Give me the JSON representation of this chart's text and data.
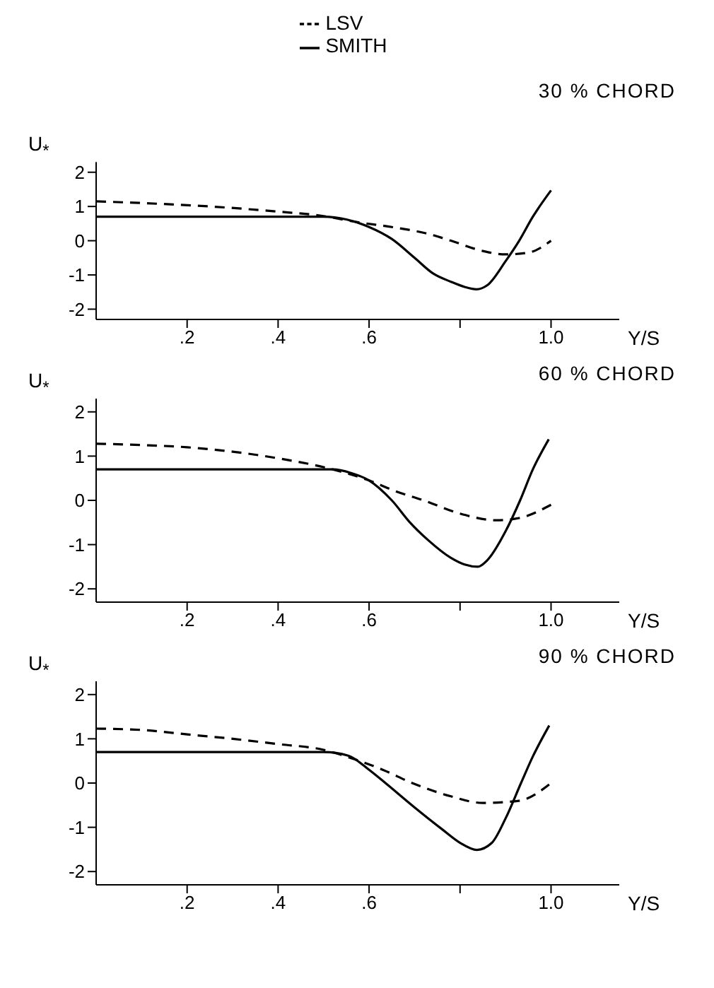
{
  "chart_data": [
    {
      "type": "line",
      "title": "30 % CHORD",
      "xlabel": "Y/S",
      "ylabel": "U$_{*}$",
      "legend": "top",
      "xlim": [
        0,
        1.15
      ],
      "ylim": [
        -2.3,
        2.3
      ],
      "xticks": [
        {
          "value": 0.2,
          "label": ".2"
        },
        {
          "value": 0.4,
          "label": ".4"
        },
        {
          "value": 0.6,
          "label": ".6"
        },
        {
          "value": 0.8,
          "label": null
        },
        {
          "value": 1.0,
          "label": "1.0"
        }
      ],
      "yticks": [
        -2,
        -1,
        0,
        1,
        2
      ],
      "series": [
        {
          "name": "SMITH",
          "color": "#000000",
          "line_style": "solid",
          "x": [
            0,
            0.2,
            0.4,
            0.5,
            0.55,
            0.6,
            0.65,
            0.7,
            0.74,
            0.78,
            0.81,
            0.836,
            0.86,
            0.9,
            0.93,
            0.96,
            1.0
          ],
          "values": [
            0.7,
            0.7,
            0.7,
            0.7,
            0.62,
            0.4,
            0.05,
            -0.5,
            -0.95,
            -1.2,
            -1.35,
            -1.42,
            -1.3,
            -0.6,
            0,
            0.7,
            1.47
          ]
        },
        {
          "name": "LSV",
          "color": "#000000",
          "line_style": "dashed",
          "x": [
            0,
            0.1,
            0.25,
            0.4,
            0.5,
            0.57,
            0.65,
            0.73,
            0.78,
            0.85,
            0.9,
            0.95,
            1.0
          ],
          "values": [
            1.15,
            1.1,
            1.0,
            0.85,
            0.72,
            0.55,
            0.4,
            0.2,
            0.0,
            -0.3,
            -0.4,
            -0.35,
            0.0
          ]
        }
      ]
    },
    {
      "type": "line",
      "title": "60 % CHORD",
      "xlabel": "Y/S",
      "ylabel": "U$_{*}$",
      "xlim": [
        0,
        1.15
      ],
      "ylim": [
        -2.3,
        2.3
      ],
      "xticks": [
        {
          "value": 0.2,
          "label": ".2"
        },
        {
          "value": 0.4,
          "label": ".4"
        },
        {
          "value": 0.6,
          "label": ".6"
        },
        {
          "value": 0.8,
          "label": null
        },
        {
          "value": 1.0,
          "label": "1.0"
        }
      ],
      "yticks": [
        -2,
        -1,
        0,
        1,
        2
      ],
      "series": [
        {
          "color": "#000000",
          "line_style": "solid",
          "x": [
            0,
            0.2,
            0.4,
            0.52,
            0.56,
            0.6,
            0.65,
            0.69,
            0.73,
            0.78,
            0.81,
            0.839,
            0.86,
            0.9,
            0.932,
            0.96,
            0.995
          ],
          "values": [
            0.7,
            0.7,
            0.7,
            0.7,
            0.62,
            0.45,
            0,
            -0.5,
            -0.9,
            -1.3,
            -1.45,
            -1.5,
            -1.35,
            -0.7,
            0,
            0.7,
            1.38
          ]
        },
        {
          "color": "#000000",
          "line_style": "dashed",
          "x": [
            0,
            0.1,
            0.2,
            0.3,
            0.4,
            0.5,
            0.6,
            0.66,
            0.72,
            0.8,
            0.88,
            0.93,
            1.0
          ],
          "values": [
            1.28,
            1.25,
            1.2,
            1.1,
            0.95,
            0.75,
            0.45,
            0.2,
            0,
            -0.3,
            -0.45,
            -0.4,
            -0.1
          ]
        }
      ]
    },
    {
      "type": "line",
      "title": "90 % CHORD",
      "xlabel": "Y/S",
      "ylabel": "U$_{*}$",
      "xlim": [
        0,
        1.15
      ],
      "ylim": [
        -2.3,
        2.3
      ],
      "xticks": [
        {
          "value": 0.2,
          "label": ".2"
        },
        {
          "value": 0.4,
          "label": ".4"
        },
        {
          "value": 0.6,
          "label": ".6"
        },
        {
          "value": 0.8,
          "label": null
        },
        {
          "value": 1.0,
          "label": "1.0"
        }
      ],
      "yticks": [
        -2,
        -1,
        0,
        1,
        2
      ],
      "series": [
        {
          "color": "#000000",
          "line_style": "solid",
          "x": [
            0,
            0.2,
            0.4,
            0.5,
            0.554,
            0.6,
            0.636,
            0.7,
            0.76,
            0.8,
            0.837,
            0.87,
            0.9,
            0.934,
            0.96,
            0.996
          ],
          "values": [
            0.7,
            0.7,
            0.7,
            0.7,
            0.62,
            0.3,
            0,
            -0.55,
            -1.04,
            -1.35,
            -1.51,
            -1.35,
            -0.8,
            0,
            0.6,
            1.3
          ]
        },
        {
          "color": "#000000",
          "line_style": "dashed",
          "x": [
            0,
            0.1,
            0.2,
            0.3,
            0.4,
            0.5,
            0.55,
            0.63,
            0.695,
            0.78,
            0.85,
            0.93,
            1.0
          ],
          "values": [
            1.23,
            1.2,
            1.1,
            1.0,
            0.88,
            0.75,
            0.6,
            0.3,
            0,
            -0.3,
            -0.45,
            -0.4,
            0
          ]
        }
      ]
    }
  ]
}
